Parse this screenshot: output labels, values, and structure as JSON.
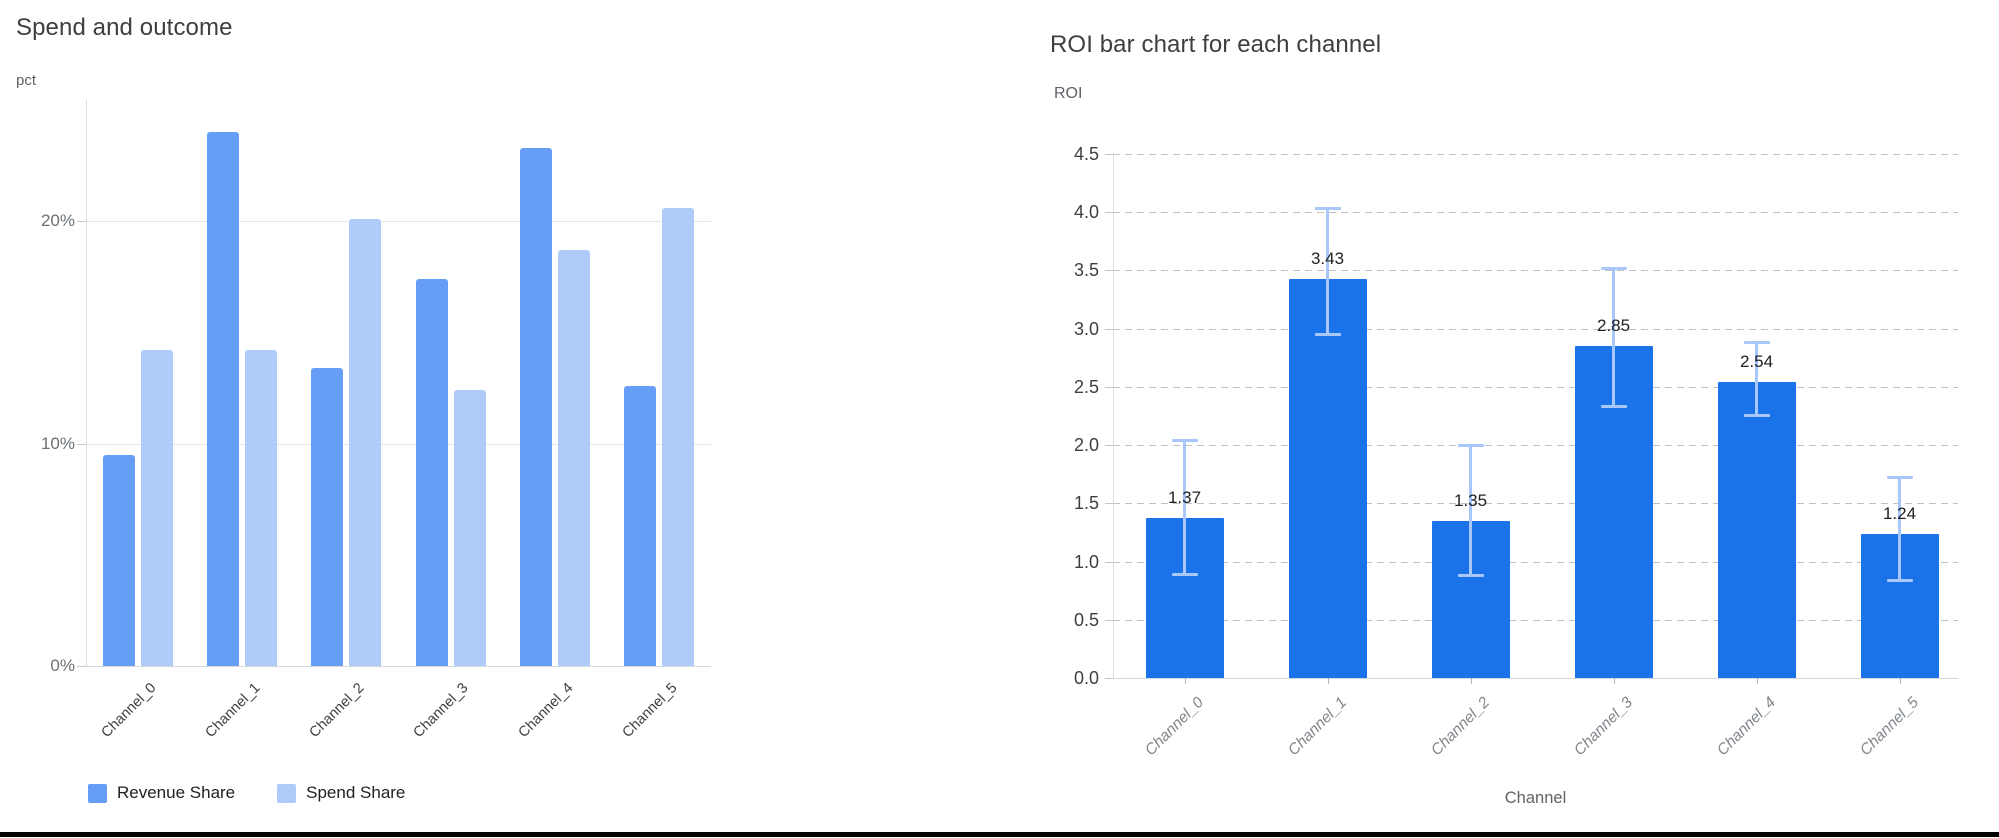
{
  "window": {
    "background": "#ffffff",
    "bottom_bar_color": "#000000"
  },
  "chart_data": [
    {
      "type": "bar",
      "title": "Spend and outcome",
      "y_unit_label": "pct",
      "categories": [
        "Channel_0",
        "Channel_1",
        "Channel_2",
        "Channel_3",
        "Channel_4",
        "Channel_5"
      ],
      "series": [
        {
          "name": "Revenue Share",
          "color": "#669df6",
          "values": [
            9.5,
            24.0,
            13.4,
            17.4,
            23.3,
            12.6
          ]
        },
        {
          "name": "Spend Share",
          "color": "#aecbfa",
          "values": [
            14.2,
            14.2,
            20.1,
            12.4,
            18.7,
            20.6
          ]
        }
      ],
      "y_ticks": [
        {
          "value": 0,
          "label": "0%"
        },
        {
          "value": 10,
          "label": "10%"
        },
        {
          "value": 20,
          "label": "20%"
        }
      ],
      "ylim": [
        0,
        25.46
      ],
      "grid": "solid-horizontal",
      "legend_position": "bottom",
      "x_label_rotation_deg": -45
    },
    {
      "type": "bar",
      "title": "ROI bar chart for each channel",
      "ylabel": "ROI",
      "xlabel": "Channel",
      "categories": [
        "Channel_0",
        "Channel_1",
        "Channel_2",
        "Channel_3",
        "Channel_4",
        "Channel_5"
      ],
      "values": [
        1.37,
        3.43,
        1.35,
        2.85,
        2.54,
        1.24
      ],
      "bar_labels": [
        "1.37",
        "3.43",
        "1.35",
        "2.85",
        "2.54",
        "1.24"
      ],
      "error_low": [
        0.89,
        2.95,
        0.88,
        2.33,
        2.25,
        0.84
      ],
      "error_high": [
        2.04,
        4.03,
        2.0,
        3.52,
        2.88,
        1.72
      ],
      "y_ticks": [
        {
          "value": 0,
          "label": "0.0"
        },
        {
          "value": 0.5,
          "label": "0.5"
        },
        {
          "value": 1,
          "label": "1.0"
        },
        {
          "value": 1.5,
          "label": "1.5"
        },
        {
          "value": 2,
          "label": "2.0"
        },
        {
          "value": 2.5,
          "label": "2.5"
        },
        {
          "value": 3,
          "label": "3.0"
        },
        {
          "value": 3.5,
          "label": "3.5"
        },
        {
          "value": 4,
          "label": "4.0"
        },
        {
          "value": 4.5,
          "label": "4.5"
        }
      ],
      "ylim": [
        0,
        4.62
      ],
      "bar_color": "#1a73e8",
      "error_bar_color": "#a8c7fa",
      "grid": "dashed-horizontal",
      "x_label_rotation_deg": -45,
      "x_label_style": "italic"
    }
  ]
}
